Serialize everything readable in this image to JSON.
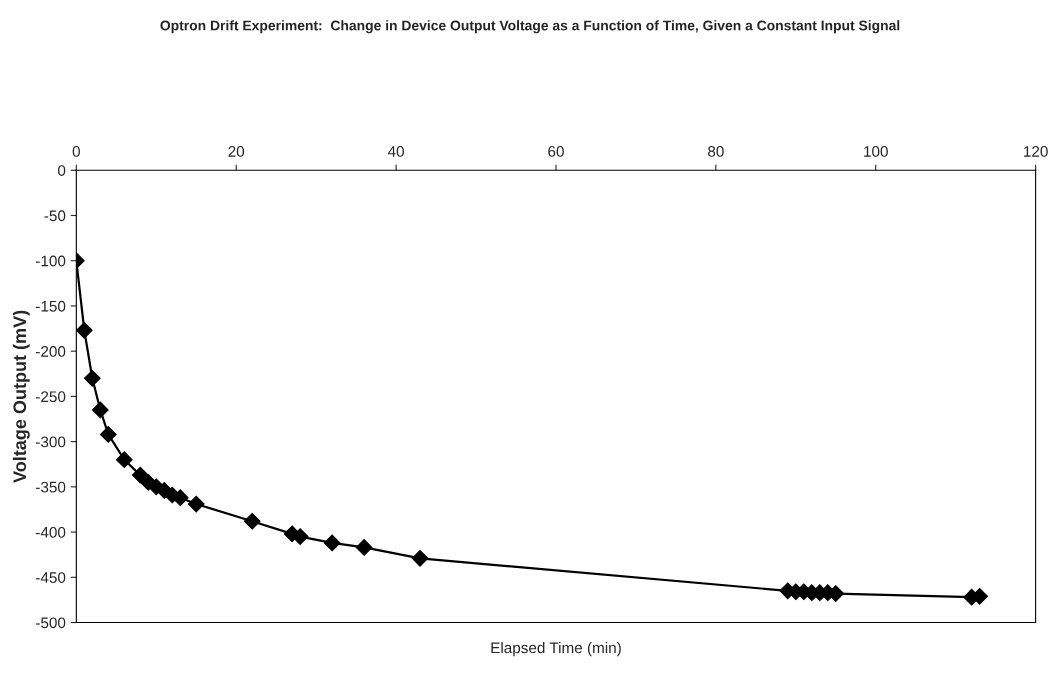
{
  "chart_data": {
    "type": "line",
    "title": "Optron Drift Experiment:  Change in Device Output Voltage as a Function of Time, Given a Constant Input Signal",
    "xlabel": "Elapsed Time (min)",
    "ylabel": "Voltage Output (mV)",
    "x": [
      0,
      1,
      2,
      3,
      4,
      6,
      8,
      9,
      10,
      11,
      12,
      13,
      15,
      22,
      27,
      28,
      32,
      36,
      43,
      89,
      90,
      91,
      92,
      93,
      94,
      95,
      112,
      113
    ],
    "series": [
      {
        "color": "#000000",
        "values": [
          -100,
          -177,
          -230,
          -265,
          -292,
          -320,
          -337,
          -345,
          -350,
          -354,
          -359,
          -362,
          -369,
          -388,
          -402,
          -405,
          -412,
          -417,
          -429,
          -465,
          -466,
          -466,
          -467,
          -467,
          -467,
          -468,
          -472,
          -471
        ]
      }
    ],
    "xlim": [
      0,
      120
    ],
    "xticks": [
      0,
      20,
      40,
      60,
      80,
      100,
      120
    ],
    "ylim": [
      -500,
      0
    ],
    "yticks": [
      -500,
      -450,
      -400,
      -350,
      -300,
      -250,
      -200,
      -150,
      -100,
      -50,
      0
    ],
    "marker": "diamond",
    "line_style": "solid",
    "grid": false
  }
}
